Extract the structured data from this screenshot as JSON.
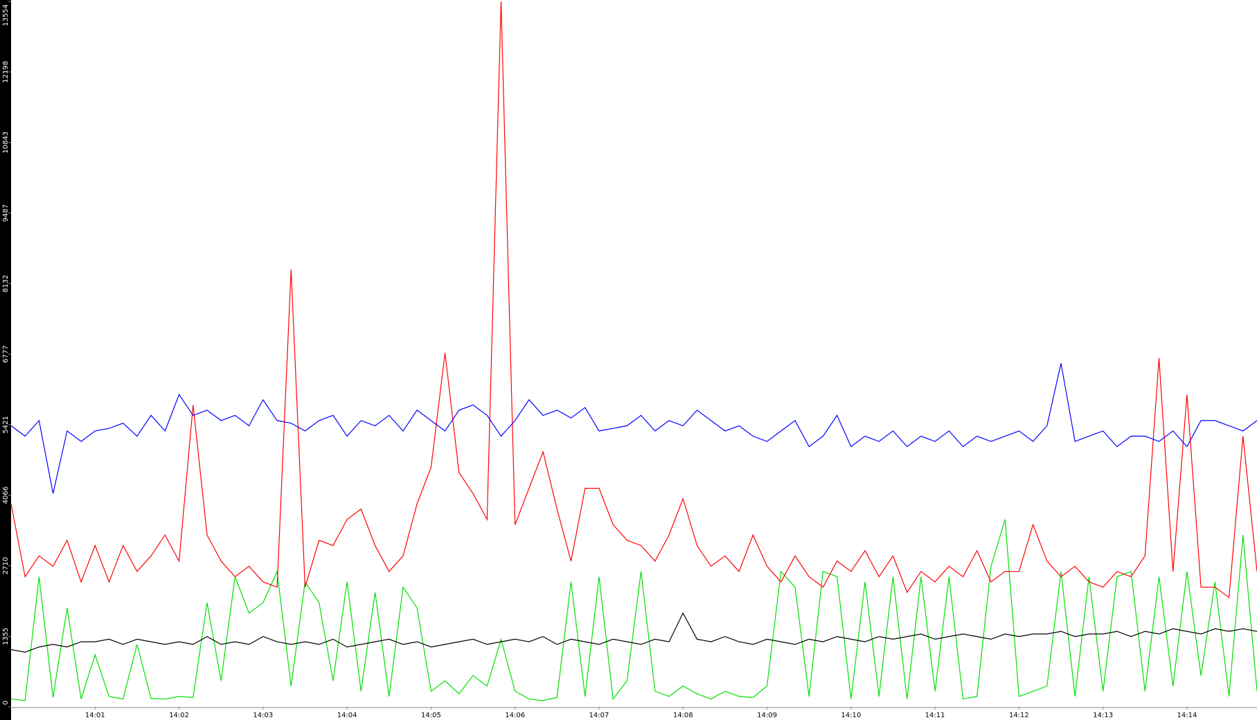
{
  "chart_data": {
    "type": "line",
    "categories": [
      null,
      null,
      null,
      null,
      null,
      null,
      "14:01",
      null,
      null,
      null,
      null,
      null,
      "14:02",
      null,
      null,
      null,
      null,
      null,
      "14:03",
      null,
      null,
      null,
      null,
      null,
      "14:04",
      null,
      null,
      null,
      null,
      null,
      "14:05",
      null,
      null,
      null,
      null,
      null,
      "14:06",
      null,
      null,
      null,
      null,
      null,
      "14:07",
      null,
      null,
      null,
      null,
      null,
      "14:08",
      null,
      null,
      null,
      null,
      null,
      "14:09",
      null,
      null,
      null,
      null,
      null,
      "14:10",
      null,
      null,
      null,
      null,
      null,
      "14:11",
      null,
      null,
      null,
      null,
      null,
      "14:12",
      null,
      null,
      null,
      null,
      null,
      "14:13",
      null,
      null,
      null,
      null,
      null,
      "14:14",
      null,
      null,
      null,
      null,
      null
    ],
    "series": [
      {
        "color": "#0000ff",
        "values": [
          5400,
          5200,
          5500,
          4100,
          5300,
          5100,
          5300,
          5350,
          5450,
          5200,
          5600,
          5300,
          6000,
          5600,
          5700,
          5500,
          5600,
          5400,
          5900,
          5500,
          5450,
          5300,
          5500,
          5600,
          5200,
          5500,
          5400,
          5600,
          5300,
          5700,
          5500,
          5300,
          5700,
          5800,
          5600,
          5200,
          5500,
          5900,
          5600,
          5700,
          5550,
          5750,
          5300,
          5350,
          5400,
          5600,
          5300,
          5500,
          5400,
          5700,
          5500,
          5300,
          5400,
          5200,
          5100,
          5300,
          5500,
          5000,
          5200,
          5600,
          5000,
          5200,
          5100,
          5300,
          5000,
          5200,
          5100,
          5300,
          5000,
          5200,
          5100,
          5200,
          5300,
          5100,
          5400,
          6600,
          5100,
          5200,
          5300,
          5000,
          5200,
          5200,
          5100,
          5300,
          5000,
          5500,
          5500,
          5400,
          5300,
          5500
        ]
      },
      {
        "color": "#ff0000",
        "values": [
          3900,
          2500,
          2900,
          2700,
          3200,
          2400,
          3100,
          2400,
          3100,
          2600,
          2900,
          3300,
          2800,
          5800,
          3300,
          2800,
          2500,
          2700,
          2400,
          2300,
          8400,
          2300,
          3200,
          3100,
          3600,
          3800,
          3100,
          2600,
          2900,
          3900,
          4600,
          6800,
          4500,
          4100,
          3600,
          13554,
          3500,
          4200,
          4900,
          3800,
          2800,
          4200,
          4200,
          3500,
          3200,
          3100,
          2800,
          3300,
          4000,
          3100,
          2700,
          2900,
          2600,
          3300,
          2700,
          2400,
          2900,
          2500,
          2300,
          2800,
          2600,
          3000,
          2500,
          2900,
          2200,
          2600,
          2400,
          2700,
          2500,
          3000,
          2400,
          2600,
          2600,
          3500,
          2800,
          2500,
          2700,
          2400,
          2300,
          2600,
          2500,
          2900,
          6700,
          2600,
          6000,
          2300,
          2300,
          2100,
          5200,
          2600
        ]
      },
      {
        "color": "#000000",
        "values": [
          1100,
          1050,
          1150,
          1200,
          1150,
          1250,
          1250,
          1300,
          1200,
          1300,
          1250,
          1200,
          1250,
          1200,
          1350,
          1200,
          1250,
          1200,
          1350,
          1250,
          1200,
          1250,
          1200,
          1300,
          1150,
          1200,
          1250,
          1300,
          1200,
          1250,
          1150,
          1200,
          1250,
          1300,
          1200,
          1250,
          1300,
          1250,
          1350,
          1200,
          1300,
          1250,
          1200,
          1300,
          1250,
          1200,
          1300,
          1250,
          1800,
          1300,
          1250,
          1350,
          1250,
          1200,
          1300,
          1250,
          1200,
          1300,
          1250,
          1350,
          1300,
          1250,
          1350,
          1300,
          1350,
          1400,
          1300,
          1350,
          1400,
          1350,
          1300,
          1400,
          1350,
          1400,
          1400,
          1450,
          1350,
          1400,
          1400,
          1450,
          1350,
          1450,
          1400,
          1500,
          1450,
          1400,
          1500,
          1450,
          1500,
          1450
        ]
      },
      {
        "color": "#00e000",
        "values": [
          150,
          120,
          2500,
          180,
          1900,
          150,
          1000,
          200,
          150,
          1200,
          160,
          150,
          200,
          180,
          2000,
          500,
          2500,
          1800,
          2000,
          2600,
          400,
          2400,
          2000,
          500,
          2400,
          300,
          2200,
          200,
          2300,
          1900,
          300,
          500,
          250,
          600,
          400,
          1300,
          300,
          150,
          120,
          180,
          2400,
          200,
          2500,
          150,
          500,
          2600,
          300,
          200,
          400,
          250,
          150,
          300,
          200,
          180,
          400,
          2600,
          2300,
          200,
          2600,
          2500,
          150,
          2400,
          200,
          2500,
          150,
          2500,
          300,
          2500,
          150,
          200,
          2700,
          3600,
          200,
          300,
          400,
          2600,
          200,
          2500,
          300,
          2500,
          2600,
          300,
          2500,
          400,
          2600,
          600,
          2400,
          200,
          3300,
          300
        ]
      }
    ],
    "ylim": [
      0,
      13554
    ],
    "yticks": [
      0,
      1355,
      2710,
      4066,
      5421,
      6777,
      8132,
      9487,
      10843,
      12198,
      13554
    ]
  }
}
